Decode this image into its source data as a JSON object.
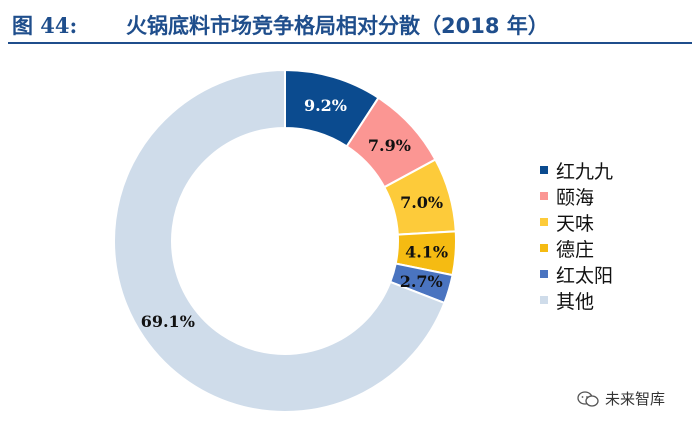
{
  "header": {
    "figure_label": "图 44:",
    "title": "火锅底料市场竞争格局相对分散（2018 年）"
  },
  "chart_data": {
    "type": "pie",
    "variant": "donut",
    "title": "火锅底料市场竞争格局相对分散（2018 年）",
    "legend_position": "right",
    "slices": [
      {
        "label": "红九九",
        "value": 9.2,
        "display": "9.2%",
        "color": "#0b4b8f"
      },
      {
        "label": "颐海",
        "value": 7.9,
        "display": "7.9%",
        "color": "#fb9693"
      },
      {
        "label": "天味",
        "value": 7.0,
        "display": "7.0%",
        "color": "#fdcb3a"
      },
      {
        "label": "德庄",
        "value": 4.1,
        "display": "4.1%",
        "color": "#f5bb12"
      },
      {
        "label": "红太阳",
        "value": 2.7,
        "display": "2.7%",
        "color": "#4a74c0"
      },
      {
        "label": "其他",
        "value": 69.1,
        "display": "69.1%",
        "color": "#cfdcea"
      }
    ]
  },
  "watermark": {
    "text": "未来智库",
    "icon": "wechat-icon"
  }
}
